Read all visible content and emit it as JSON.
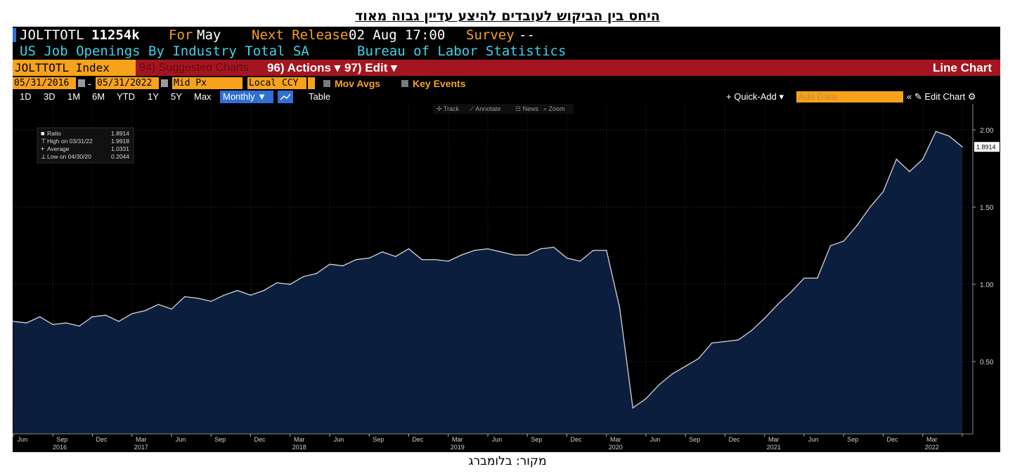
{
  "page": {
    "title": "היחס בין הביקוש לעובדים להיצע עדיין גבוה מאוד",
    "caption": "מקור: בלומברג"
  },
  "terminal": {
    "ticker": "JOLTTOTL",
    "last_value": "11254k",
    "for_label": "For",
    "for_value": "May",
    "next_release_label": "Next Release",
    "next_release_value": "02 Aug 17:00",
    "survey_label": "Survey",
    "survey_value": "--",
    "description": "US Job Openings By Industry Total SA",
    "source": "Bureau of Labor Statistics",
    "index_box": "JOLTTOTL Index",
    "suggested_charts": "94) Suggested Charts",
    "actions": "96) Actions ▾",
    "edit": "97) Edit ▾",
    "chart_type": "Line Chart",
    "date_start": "05/31/2016",
    "date_end": "05/31/2022",
    "date_separator": "-",
    "price_field": "Mid Px",
    "currency": "Local CCY",
    "mov_avgs": "Mov Avgs",
    "key_events": "Key Events",
    "timeframes": [
      "1D",
      "3D",
      "1M",
      "6M",
      "YTD",
      "1Y",
      "5Y",
      "Max"
    ],
    "frequency": "Monthly ▼",
    "table_label": "Table",
    "quick_add": "+ Quick-Add ▾",
    "add_data_placeholder": "Add Data",
    "edit_chart": "« ✎ Edit Chart ⚙",
    "chart_tools": [
      "✢ Track",
      "⟋ Annotate",
      "☷ News",
      "⌕ Zoom"
    ],
    "legend": {
      "ratio_label": "Ratio",
      "ratio_value": "1.8914",
      "high_label": "High on 03/31/22",
      "high_value": "1.9918",
      "avg_label": "Average",
      "avg_value": "1.0331",
      "low_label": "Low on 04/30/20",
      "low_value": "0.2044"
    },
    "last_value_flag": "1.8914"
  },
  "colors": {
    "area_fill": "#0b1e3d",
    "line": "#c9c9c9",
    "bloomberg_orange": "#f7a21b",
    "bloomberg_red": "#a31621",
    "bloomberg_blue": "#2f6fd6"
  },
  "chart_data": {
    "type": "area",
    "title": "היחס בין הביקוש לעובדים להיצע עדיין גבוה מאוד",
    "series": [
      {
        "name": "Ratio",
        "values": [
          0.76,
          0.75,
          0.79,
          0.74,
          0.75,
          0.73,
          0.79,
          0.8,
          0.76,
          0.81,
          0.83,
          0.87,
          0.84,
          0.92,
          0.91,
          0.89,
          0.93,
          0.96,
          0.93,
          0.96,
          1.01,
          1.0,
          1.05,
          1.07,
          1.13,
          1.12,
          1.16,
          1.17,
          1.21,
          1.18,
          1.23,
          1.16,
          1.16,
          1.15,
          1.19,
          1.22,
          1.23,
          1.21,
          1.19,
          1.19,
          1.23,
          1.24,
          1.17,
          1.15,
          1.22,
          1.22,
          0.85,
          0.2,
          0.26,
          0.35,
          0.42,
          0.47,
          0.52,
          0.62,
          0.63,
          0.64,
          0.7,
          0.78,
          0.87,
          0.95,
          1.04,
          1.04,
          1.25,
          1.28,
          1.38,
          1.5,
          1.6,
          1.81,
          1.73,
          1.81,
          1.99,
          1.96,
          1.89
        ]
      }
    ],
    "x_start": "2016-06",
    "x_end": "2022-06",
    "x_frequency": "monthly",
    "y_ticks": [
      "2.00",
      "1.50",
      "1.00",
      "0.50"
    ],
    "y_tick_values": [
      2.0,
      1.5,
      1.0,
      0.5
    ],
    "ylim": [
      0.0,
      2.1
    ],
    "x_tick_months": [
      "Jun",
      "Sep",
      "Dec",
      "Mar",
      "Jun",
      "Sep",
      "Dec",
      "Mar",
      "Jun",
      "Sep",
      "Dec",
      "Mar",
      "Jun",
      "Sep",
      "Dec",
      "Mar",
      "Jun",
      "Sep",
      "Dec",
      "Mar",
      "Jun",
      "Sep",
      "Dec",
      "Mar"
    ],
    "x_tick_years": [
      "2016",
      "2017",
      "2018",
      "2019",
      "2020",
      "2021",
      "2022"
    ],
    "grid": true,
    "legend_position": "top-left"
  }
}
